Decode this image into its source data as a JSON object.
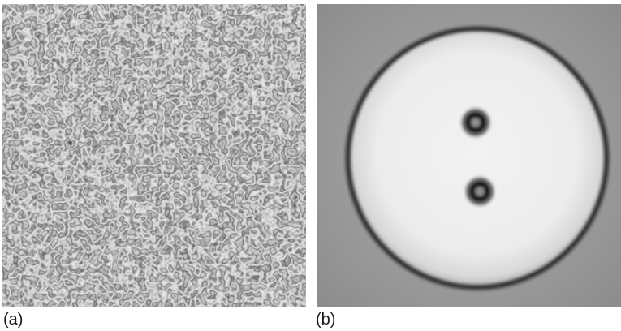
{
  "panels": [
    {
      "label": "(a)",
      "content": "speckle-noise-pattern"
    },
    {
      "label": "(b)",
      "content": "disk-with-two-dark-spots"
    }
  ]
}
